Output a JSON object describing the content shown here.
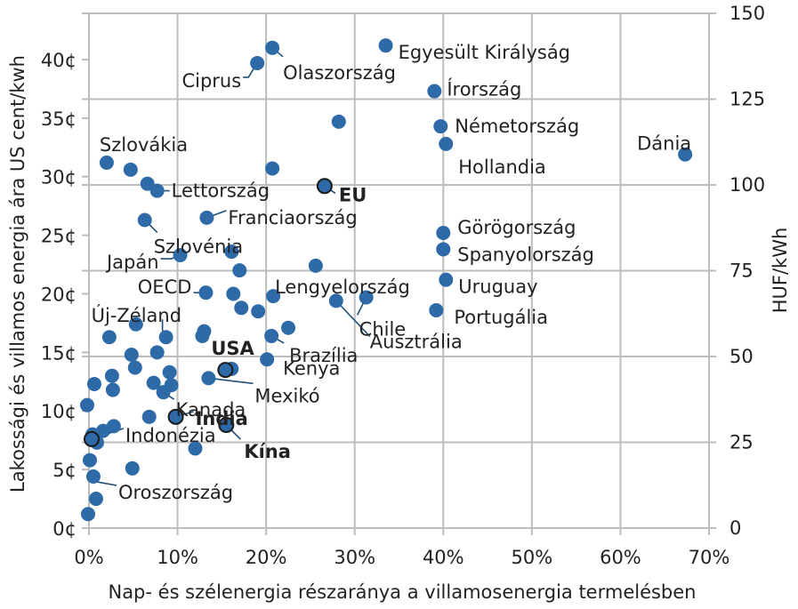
{
  "chart_data": {
    "type": "scatter",
    "xlabel": "Nap- és szélenergia részaránya a villamosenergia termelésben",
    "ylabel": "Lakossági és villamos energia ára US cent/kwh",
    "y2label": "HUF/kWh",
    "xlim": [
      0,
      70
    ],
    "ylim": [
      0,
      42
    ],
    "y2lim": [
      0,
      150
    ],
    "grid": true,
    "x_ticks": [
      0,
      10,
      20,
      30,
      40,
      50,
      60,
      70
    ],
    "x_tick_labels": [
      "0%",
      "10%",
      "20%",
      "30%",
      "40%",
      "50%",
      "60%",
      "70%"
    ],
    "y_ticks": [
      0,
      5,
      10,
      15,
      20,
      25,
      30,
      35,
      40
    ],
    "y_tick_labels": [
      "0¢",
      "5¢",
      "10¢",
      "15¢",
      "20¢",
      "25¢",
      "30¢",
      "35¢",
      "40¢"
    ],
    "y2_ticks": [
      0,
      25,
      50,
      75,
      100,
      125,
      150
    ],
    "y2_tick_labels": [
      "0",
      "25",
      "50",
      "75",
      "100",
      "125",
      "150"
    ],
    "colors": {
      "point": "#2e6aa8",
      "highlight_stroke": "#1a1a1a",
      "leader": "#1f4e79",
      "grid": "#bdbdbd"
    },
    "points": [
      {
        "x": 33.5,
        "y": 41.2,
        "label": "Egyesült Királyság"
      },
      {
        "x": 20.7,
        "y": 41.0,
        "label": "Olaszország"
      },
      {
        "x": 19.0,
        "y": 39.7,
        "label": "Ciprus"
      },
      {
        "x": 39.0,
        "y": 37.3,
        "label": "Írország"
      },
      {
        "x": 28.2,
        "y": 34.7
      },
      {
        "x": 39.7,
        "y": 34.3,
        "label": "Németország"
      },
      {
        "x": 40.3,
        "y": 32.8,
        "label": "Hollandia"
      },
      {
        "x": 67.3,
        "y": 31.9,
        "label": "Dánia"
      },
      {
        "x": 2.0,
        "y": 31.2,
        "label": "Szlovákia"
      },
      {
        "x": 4.7,
        "y": 30.6
      },
      {
        "x": 20.7,
        "y": 30.7
      },
      {
        "x": 6.6,
        "y": 29.4
      },
      {
        "x": 7.7,
        "y": 28.8,
        "label": "Lettország"
      },
      {
        "x": 26.6,
        "y": 29.2,
        "label": "EU",
        "highlight": true
      },
      {
        "x": 13.3,
        "y": 26.5,
        "label": "Franciaország"
      },
      {
        "x": 6.3,
        "y": 26.3,
        "label": "Szlovénia"
      },
      {
        "x": 40.0,
        "y": 25.2,
        "label": "Görögország"
      },
      {
        "x": 16.1,
        "y": 23.6
      },
      {
        "x": 10.3,
        "y": 23.3,
        "label": "Japán"
      },
      {
        "x": 40.0,
        "y": 23.8,
        "label": "Spanyolország"
      },
      {
        "x": 25.6,
        "y": 22.4
      },
      {
        "x": 17.0,
        "y": 22.0
      },
      {
        "x": 40.3,
        "y": 21.2,
        "label": "Uruguay"
      },
      {
        "x": 13.2,
        "y": 20.1,
        "label": "OECD"
      },
      {
        "x": 16.3,
        "y": 20.0
      },
      {
        "x": 20.8,
        "y": 19.8,
        "label": "Lengyelország"
      },
      {
        "x": 31.3,
        "y": 19.7,
        "label": "Chile"
      },
      {
        "x": 27.9,
        "y": 19.4,
        "label": "Ausztrália"
      },
      {
        "x": 17.2,
        "y": 18.8
      },
      {
        "x": 19.1,
        "y": 18.5
      },
      {
        "x": 39.2,
        "y": 18.6,
        "label": "Portugália"
      },
      {
        "x": 5.3,
        "y": 17.4
      },
      {
        "x": 22.5,
        "y": 17.1
      },
      {
        "x": 13.0,
        "y": 16.8
      },
      {
        "x": 12.8,
        "y": 16.4
      },
      {
        "x": 8.7,
        "y": 16.3,
        "label": "Új-Zéland"
      },
      {
        "x": 20.6,
        "y": 16.4,
        "label": "Brazília"
      },
      {
        "x": 2.3,
        "y": 16.3
      },
      {
        "x": 7.7,
        "y": 15.0
      },
      {
        "x": 4.8,
        "y": 14.8
      },
      {
        "x": 20.1,
        "y": 14.4,
        "label": "Kenya"
      },
      {
        "x": 5.2,
        "y": 13.7
      },
      {
        "x": 16.1,
        "y": 13.6
      },
      {
        "x": 15.4,
        "y": 13.5,
        "label": "USA",
        "highlight": true
      },
      {
        "x": 9.1,
        "y": 13.3
      },
      {
        "x": 2.6,
        "y": 13.0
      },
      {
        "x": 13.5,
        "y": 12.8,
        "label": "Mexikó"
      },
      {
        "x": 7.3,
        "y": 12.4
      },
      {
        "x": 9.3,
        "y": 12.2
      },
      {
        "x": 0.6,
        "y": 12.3
      },
      {
        "x": 8.4,
        "y": 11.6,
        "label": "Kanada"
      },
      {
        "x": 2.7,
        "y": 11.8
      },
      {
        "x": -0.2,
        "y": 10.5
      },
      {
        "x": 9.8,
        "y": 9.5,
        "label": "India",
        "highlight": true
      },
      {
        "x": 6.8,
        "y": 9.5
      },
      {
        "x": 2.8,
        "y": 8.7
      },
      {
        "x": 1.6,
        "y": 8.3
      },
      {
        "x": 15.5,
        "y": 8.8,
        "label": "Kína",
        "highlight": true
      },
      {
        "x": 0.4,
        "y": 8.0
      },
      {
        "x": 0.9,
        "y": 7.3
      },
      {
        "x": 0.3,
        "y": 7.6,
        "label": "Indonézia",
        "highlight": true
      },
      {
        "x": 12.0,
        "y": 6.8
      },
      {
        "x": 0.1,
        "y": 5.8
      },
      {
        "x": 4.9,
        "y": 5.1
      },
      {
        "x": 0.5,
        "y": 4.4,
        "label": "Oroszország"
      },
      {
        "x": 0.8,
        "y": 2.5
      },
      {
        "x": -0.1,
        "y": 1.2
      }
    ]
  }
}
